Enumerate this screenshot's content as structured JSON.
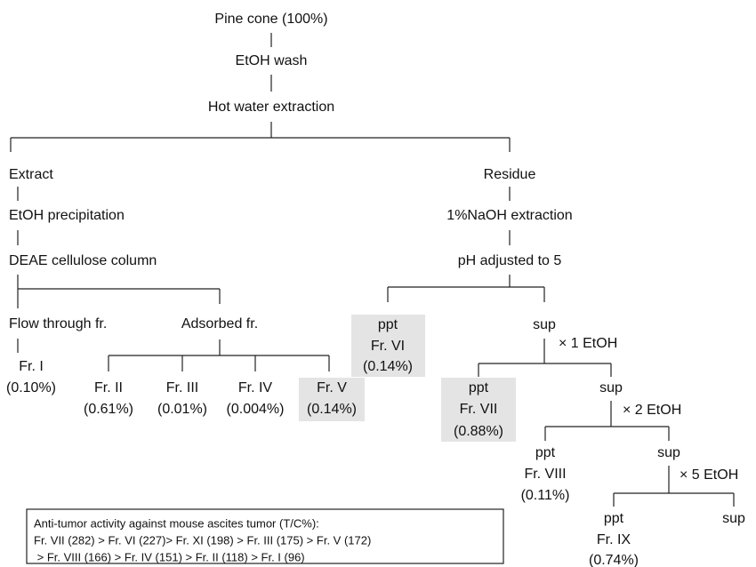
{
  "nodes": [
    "Pine cone (100%)",
    "EtOH wash",
    "Hot water extraction",
    "Extract",
    "Residue",
    "EtOH precipitation",
    "DEAE cellulose column",
    "Flow through fr.",
    "Adsorbed fr.",
    "1%NaOH extraction",
    "pH adjusted to 5",
    "Fr. I",
    "(0.10%)",
    "Fr. II",
    "(0.61%)",
    "Fr. III",
    "(0.01%)",
    "Fr. IV",
    "(0.004%)",
    "Fr. V",
    "(0.14%)",
    "ppt",
    "Fr. VI",
    "(0.14%)",
    "sup",
    "× 1 EtOH",
    "ppt",
    "Fr. VII",
    "(0.88%)",
    "sup",
    "× 2 EtOH",
    "ppt",
    "Fr. VIII",
    "(0.11%)",
    "sup",
    "× 5 EtOH",
    "ppt",
    "Fr. IX",
    "(0.74%)",
    "sup"
  ],
  "note": {
    "title": "Anti-tumor activity against mouse ascites tumor (T/C%):",
    "lines": [
      "Fr. VII (282) > Fr. VI (227)> Fr. XI (198) > Fr. III (175) > Fr. V (172)",
      " > Fr. VIII (166) > Fr. IV (151) > Fr. II (118) > Fr. I (96)"
    ]
  }
}
